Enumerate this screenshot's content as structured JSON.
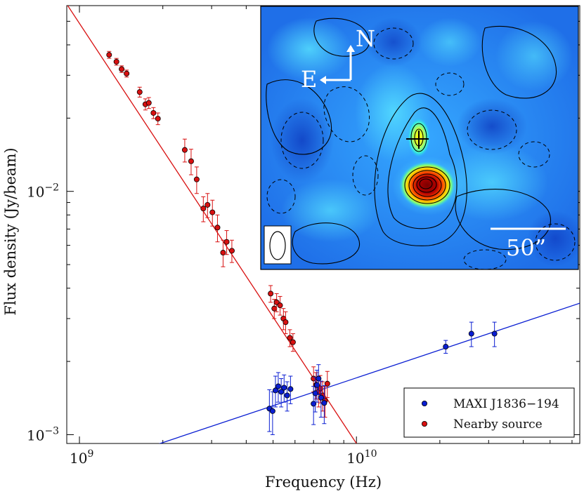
{
  "chart_data": {
    "type": "scatter",
    "scale": "log-log",
    "xlabel": "Frequency (Hz)",
    "ylabel": "Flux density (Jy/beam)",
    "xlim": [
      900000000.0,
      64000000000.0
    ],
    "ylim": [
      0.00092,
      0.058
    ],
    "x_tick_labels": [
      {
        "value": 1000000000.0,
        "base": "10",
        "exp": "9"
      },
      {
        "value": 10000000000.0,
        "base": "10",
        "exp": "10"
      }
    ],
    "y_tick_labels": [
      {
        "value": 0.01,
        "base": "10",
        "exp": "−2"
      },
      {
        "value": 0.001,
        "base": "10",
        "exp": "−3"
      }
    ],
    "legend": {
      "position": "bottom-right",
      "entries": [
        {
          "label": "MAXI J1836−194",
          "color": "#0a1ed2"
        },
        {
          "label": "Nearby source",
          "color": "#d81010"
        }
      ]
    },
    "series": [
      {
        "name": "Nearby source",
        "color": "#d81010",
        "fit": {
          "x": [
            900000000.0,
            10000000000.0
          ],
          "y": [
            0.0588,
            0.00092
          ]
        },
        "points": [
          {
            "x": 1280000000.0,
            "y": 0.0364,
            "yerr": 0.0012
          },
          {
            "x": 1360000000.0,
            "y": 0.0341,
            "yerr": 0.0011
          },
          {
            "x": 1420000000.0,
            "y": 0.0318,
            "yerr": 0.001
          },
          {
            "x": 1480000000.0,
            "y": 0.0305,
            "yerr": 0.001
          },
          {
            "x": 1650000000.0,
            "y": 0.0256,
            "yerr": 0.0012
          },
          {
            "x": 1730000000.0,
            "y": 0.0228,
            "yerr": 0.0012
          },
          {
            "x": 1780000000.0,
            "y": 0.0231,
            "yerr": 0.0012
          },
          {
            "x": 1850000000.0,
            "y": 0.021,
            "yerr": 0.0011
          },
          {
            "x": 1920000000.0,
            "y": 0.0199,
            "yerr": 0.0011
          },
          {
            "x": 2400000000.0,
            "y": 0.0148,
            "yerr": 0.0016
          },
          {
            "x": 2530000000.0,
            "y": 0.0133,
            "yerr": 0.0016
          },
          {
            "x": 2650000000.0,
            "y": 0.0112,
            "yerr": 0.0014
          },
          {
            "x": 2800000000.0,
            "y": 0.0085,
            "yerr": 0.001
          },
          {
            "x": 2900000000.0,
            "y": 0.0088,
            "yerr": 0.001
          },
          {
            "x": 3020000000.0,
            "y": 0.0082,
            "yerr": 0.001
          },
          {
            "x": 3150000000.0,
            "y": 0.0071,
            "yerr": 0.0009
          },
          {
            "x": 3300000000.0,
            "y": 0.0056,
            "yerr": 0.0007
          },
          {
            "x": 3400000000.0,
            "y": 0.0062,
            "yerr": 0.0007
          },
          {
            "x": 3550000000.0,
            "y": 0.0057,
            "yerr": 0.0006
          },
          {
            "x": 4900000000.0,
            "y": 0.0038,
            "yerr": 0.0003
          },
          {
            "x": 5050000000.0,
            "y": 0.0033,
            "yerr": 0.0003
          },
          {
            "x": 5150000000.0,
            "y": 0.0035,
            "yerr": 0.0003
          },
          {
            "x": 5300000000.0,
            "y": 0.0034,
            "yerr": 0.0003
          },
          {
            "x": 5450000000.0,
            "y": 0.003,
            "yerr": 0.0003
          },
          {
            "x": 5550000000.0,
            "y": 0.0029,
            "yerr": 0.0003
          },
          {
            "x": 5750000000.0,
            "y": 0.0025,
            "yerr": 0.0002
          },
          {
            "x": 5900000000.0,
            "y": 0.0024,
            "yerr": 0.0002
          },
          {
            "x": 7000000000.0,
            "y": 0.0017,
            "yerr": 0.0002
          },
          {
            "x": 7150000000.0,
            "y": 0.0016,
            "yerr": 0.0002
          },
          {
            "x": 7300000000.0,
            "y": 0.0015,
            "yerr": 0.0002
          },
          {
            "x": 7400000000.0,
            "y": 0.00155,
            "yerr": 0.0002
          },
          {
            "x": 7550000000.0,
            "y": 0.00145,
            "yerr": 0.0002
          },
          {
            "x": 7700000000.0,
            "y": 0.00138,
            "yerr": 0.0002
          },
          {
            "x": 7850000000.0,
            "y": 0.00162,
            "yerr": 0.0002
          }
        ]
      },
      {
        "name": "MAXI J1836−194",
        "color": "#0a1ed2",
        "fit": {
          "x": [
            1900000000.0,
            64000000000.0
          ],
          "y": [
            0.00091,
            0.00347
          ]
        },
        "points": [
          {
            "x": 4850000000.0,
            "y": 0.00128,
            "yerr": 0.00025
          },
          {
            "x": 4980000000.0,
            "y": 0.00125,
            "yerr": 0.00025
          },
          {
            "x": 5100000000.0,
            "y": 0.00152,
            "yerr": 0.00022
          },
          {
            "x": 5220000000.0,
            "y": 0.00158,
            "yerr": 0.00022
          },
          {
            "x": 5350000000.0,
            "y": 0.0015,
            "yerr": 0.0002
          },
          {
            "x": 5480000000.0,
            "y": 0.00156,
            "yerr": 0.0002
          },
          {
            "x": 5620000000.0,
            "y": 0.00145,
            "yerr": 0.0002
          },
          {
            "x": 5780000000.0,
            "y": 0.00154,
            "yerr": 0.0002
          },
          {
            "x": 7000000000.0,
            "y": 0.00134,
            "yerr": 0.00024
          },
          {
            "x": 7100000000.0,
            "y": 0.00148,
            "yerr": 0.00024
          },
          {
            "x": 7200000000.0,
            "y": 0.0016,
            "yerr": 0.00024
          },
          {
            "x": 7300000000.0,
            "y": 0.0017,
            "yerr": 0.00024
          },
          {
            "x": 7450000000.0,
            "y": 0.00142,
            "yerr": 0.00024
          },
          {
            "x": 7650000000.0,
            "y": 0.00135,
            "yerr": 0.00024
          },
          {
            "x": 21000000000.0,
            "y": 0.0023,
            "yerr": 0.00014
          },
          {
            "x": 26000000000.0,
            "y": 0.0026,
            "yerr": 0.0003
          },
          {
            "x": 31500000000.0,
            "y": 0.0026,
            "yerr": 0.0003
          }
        ]
      }
    ],
    "inset": {
      "type": "heatmap",
      "description_labels": {
        "north": "N",
        "east": "E",
        "scale_bar": "50”"
      }
    }
  }
}
